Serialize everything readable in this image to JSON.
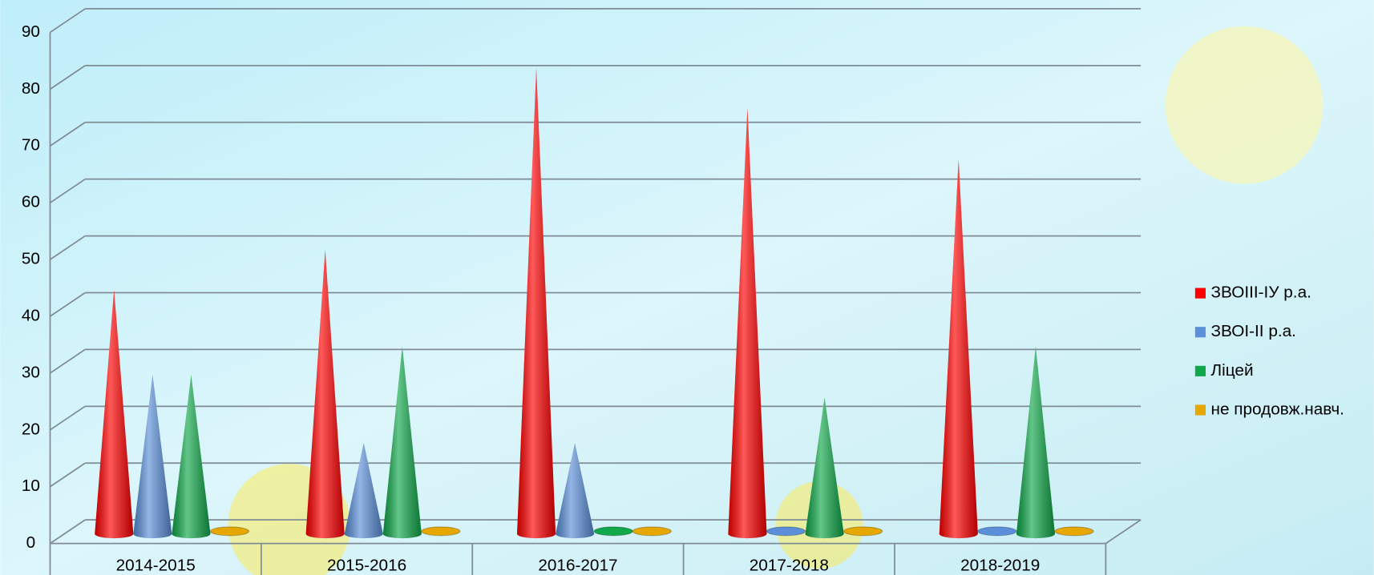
{
  "chart_data": {
    "type": "cone3d",
    "categories": [
      "2014-2015",
      "2015-2016",
      "2016-2017",
      "2017-2018",
      "2018-2019"
    ],
    "series": [
      {
        "name": "ЗВОІІІ-ІУ р.а.",
        "color": "#ff0000",
        "values": [
          43,
          50,
          82,
          75,
          66
        ]
      },
      {
        "name": "ЗВОІ-ІІ р.а.",
        "color": "#5b8fd9",
        "values": [
          28,
          16,
          16,
          0,
          0
        ]
      },
      {
        "name": "Ліцей",
        "color": "#10a84a",
        "values": [
          28,
          33,
          0,
          24,
          33
        ]
      },
      {
        "name": "не продовж.навч.",
        "color": "#e6a800",
        "values": [
          0,
          0,
          0,
          0,
          0
        ]
      }
    ],
    "ylim": [
      0,
      90
    ],
    "yticks": [
      0,
      10,
      20,
      30,
      40,
      50,
      60,
      70,
      80,
      90
    ],
    "grid": true,
    "legend": "right"
  }
}
